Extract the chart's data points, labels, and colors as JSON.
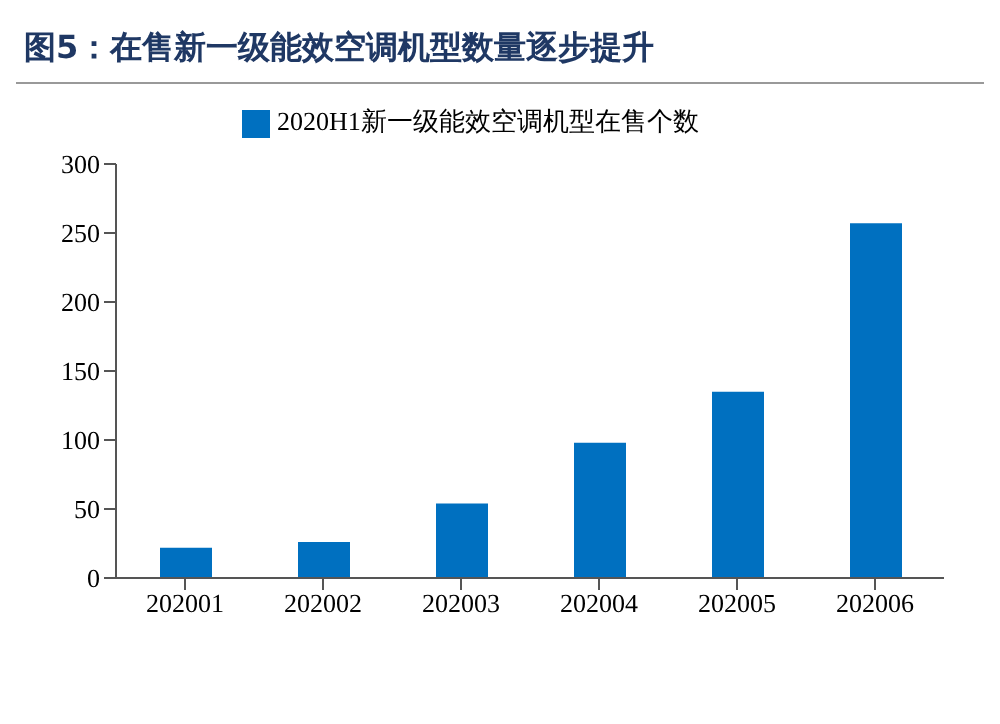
{
  "chart_data": {
    "type": "bar",
    "title": "图5：在售新一级能效空调机型数量逐步提升",
    "categories": [
      "202001",
      "202002",
      "202003",
      "202004",
      "202005",
      "202006"
    ],
    "series": [
      {
        "name": "2020H1新一级能效空调机型在售个数",
        "color": "#0070c0",
        "values": [
          22,
          26,
          54,
          98,
          135,
          257
        ]
      }
    ],
    "ylim": [
      0,
      300
    ],
    "yticks": [
      0,
      50,
      100,
      150,
      200,
      250,
      300
    ],
    "grid": false,
    "legend": "top"
  }
}
